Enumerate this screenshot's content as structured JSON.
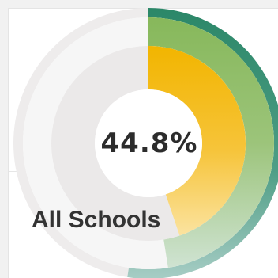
{
  "card": {
    "label": "All Schools"
  },
  "chart_data": {
    "type": "donut",
    "center_label": "44.8%",
    "series": [
      {
        "value": 44.8,
        "unit": "%",
        "color": "#f2b500"
      },
      {
        "value": 47.5,
        "unit": "%",
        "color": "#8ab85a"
      },
      {
        "value": 52.5,
        "unit": "%",
        "color": "#2f8a6a"
      }
    ],
    "track_color": "#ebe9e9",
    "range": [
      0,
      100
    ]
  }
}
